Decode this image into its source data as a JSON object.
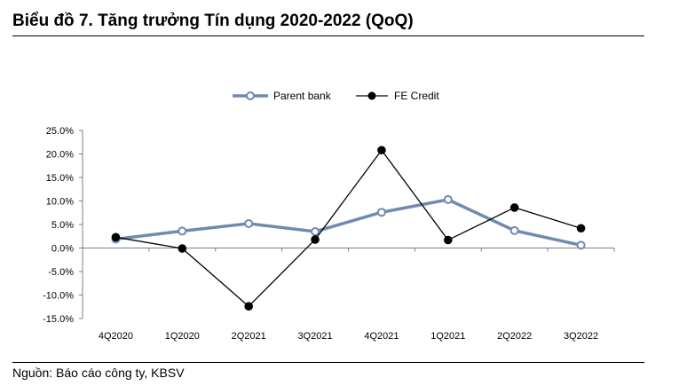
{
  "figure": {
    "title": "Biểu đồ 7. Tăng trưởng Tín dụng 2020-2022 (QoQ)",
    "source": "Nguồn: Báo cáo công ty, KBSV"
  },
  "chart_data": {
    "type": "line",
    "title": "Biểu đồ 7. Tăng trưởng Tín dụng 2020-2022 (QoQ)",
    "xlabel": "",
    "ylabel": "",
    "categories": [
      "4Q2020",
      "1Q2020",
      "2Q2021",
      "3Q2021",
      "4Q2021",
      "1Q2021",
      "2Q2022",
      "3Q2022"
    ],
    "y_ticks": [
      25,
      20,
      15,
      10,
      5,
      0,
      -5,
      -10,
      -15
    ],
    "y_tick_labels": [
      "25.0%",
      "20.0%",
      "15.0%",
      "10.0%",
      "5.0%",
      "0.0%",
      "-5.0%",
      "-10.0%",
      "-15.0%"
    ],
    "ylim": [
      -15,
      25
    ],
    "grid": false,
    "legend_position": "top-center",
    "series": [
      {
        "name": "Parent bank",
        "color": "#6F8AB0",
        "marker": "hollow-circle",
        "values": [
          1.9,
          3.6,
          5.2,
          3.5,
          7.6,
          10.3,
          3.7,
          0.6
        ]
      },
      {
        "name": "FE Credit",
        "color": "#000000",
        "marker": "filled-circle",
        "values": [
          2.3,
          -0.1,
          -12.4,
          1.8,
          20.8,
          1.7,
          8.6,
          4.2
        ]
      }
    ]
  }
}
